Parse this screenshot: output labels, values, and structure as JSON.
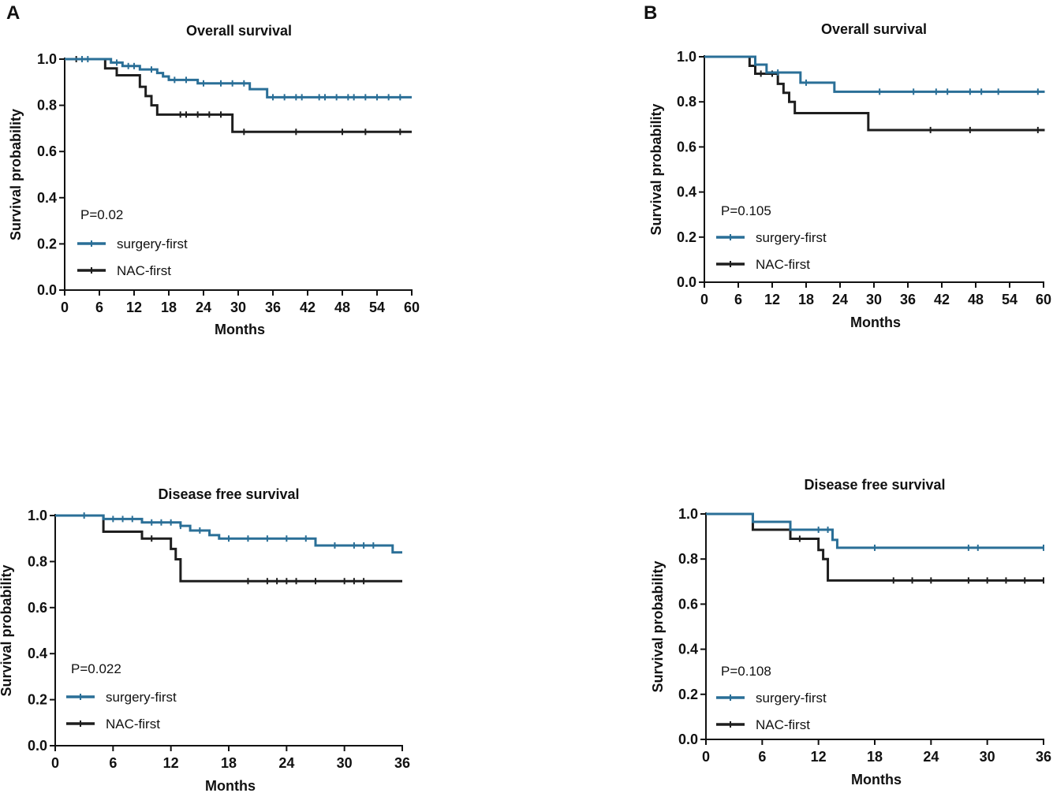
{
  "panel_labels": [
    "A",
    "B"
  ],
  "colors": {
    "surgery_first": "#2a6f97",
    "nac_first": "#1e1e1e"
  },
  "chart_data": [
    {
      "type": "line",
      "panel": "A",
      "title": "Overall survival",
      "xlabel": "Months",
      "ylabel": "Survival probability",
      "xlim": [
        0,
        60
      ],
      "ylim": [
        0,
        1.0
      ],
      "xticks": [
        0,
        6,
        12,
        18,
        24,
        30,
        36,
        42,
        48,
        54,
        60
      ],
      "yticks": [
        "0.0",
        "0.2",
        "0.4",
        "0.6",
        "0.8",
        "1.0"
      ],
      "p_value": "P=0.02",
      "series": [
        {
          "name": "surgery-first",
          "color_key": "surgery_first",
          "steps": [
            [
              0,
              1.0
            ],
            [
              8,
              0.985
            ],
            [
              10,
              0.97
            ],
            [
              13,
              0.955
            ],
            [
              16,
              0.94
            ],
            [
              17,
              0.925
            ],
            [
              18,
              0.91
            ],
            [
              23,
              0.895
            ],
            [
              32,
              0.87
            ],
            [
              35,
              0.835
            ],
            [
              60,
              0.835
            ]
          ],
          "censors": [
            3,
            4,
            9,
            11,
            12,
            15,
            19,
            21,
            24,
            27,
            29,
            31,
            36,
            38,
            40,
            41,
            44,
            45,
            47,
            49,
            50,
            52,
            54,
            56,
            58
          ]
        },
        {
          "name": "NAC-first",
          "color_key": "nac_first",
          "steps": [
            [
              0,
              1.0
            ],
            [
              7,
              0.96
            ],
            [
              9,
              0.93
            ],
            [
              13,
              0.88
            ],
            [
              14,
              0.84
            ],
            [
              15,
              0.8
            ],
            [
              16,
              0.76
            ],
            [
              29,
              0.685
            ],
            [
              60,
              0.685
            ]
          ],
          "censors": [
            2,
            20,
            21,
            23,
            25,
            27,
            31,
            40,
            48,
            52,
            58
          ]
        }
      ]
    },
    {
      "type": "line",
      "panel": "B",
      "title": "Overall survival",
      "xlabel": "Months",
      "ylabel": "Survival probability",
      "xlim": [
        0,
        60
      ],
      "ylim": [
        0,
        1.0
      ],
      "xticks": [
        0,
        6,
        12,
        18,
        24,
        30,
        36,
        42,
        48,
        54,
        60
      ],
      "yticks": [
        "0.0",
        "0.2",
        "0.4",
        "0.6",
        "0.8",
        "1.0"
      ],
      "p_value": "P=0.105",
      "series": [
        {
          "name": "surgery-first",
          "color_key": "surgery_first",
          "steps": [
            [
              0,
              1.0
            ],
            [
              9,
              0.965
            ],
            [
              11,
              0.93
            ],
            [
              17,
              0.885
            ],
            [
              23,
              0.845
            ],
            [
              60,
              0.85
            ]
          ],
          "censors": [
            13,
            18,
            31,
            37,
            41,
            43,
            47,
            49,
            52,
            59
          ]
        },
        {
          "name": "NAC-first",
          "color_key": "nac_first",
          "steps": [
            [
              0,
              1.0
            ],
            [
              8,
              0.96
            ],
            [
              9,
              0.925
            ],
            [
              13,
              0.88
            ],
            [
              14,
              0.84
            ],
            [
              15,
              0.8
            ],
            [
              16,
              0.75
            ],
            [
              29,
              0.675
            ],
            [
              60,
              0.68
            ]
          ],
          "censors": [
            10,
            12,
            40,
            47,
            59
          ]
        }
      ]
    },
    {
      "type": "line",
      "panel": "A",
      "title": "Disease free survival",
      "xlabel": "Months",
      "ylabel": "Survival probability",
      "xlim": [
        0,
        36
      ],
      "ylim": [
        0,
        1.0
      ],
      "xticks": [
        0,
        6,
        12,
        18,
        24,
        30,
        36
      ],
      "yticks": [
        "0.0",
        "0.2",
        "0.4",
        "0.6",
        "0.8",
        "1.0"
      ],
      "p_value": "P=0.022",
      "series": [
        {
          "name": "surgery-first",
          "color_key": "surgery_first",
          "steps": [
            [
              0,
              1.0
            ],
            [
              5,
              0.985
            ],
            [
              9,
              0.97
            ],
            [
              13,
              0.955
            ],
            [
              14,
              0.935
            ],
            [
              16,
              0.915
            ],
            [
              17,
              0.9
            ],
            [
              27,
              0.87
            ],
            [
              35,
              0.84
            ],
            [
              36,
              0.84
            ]
          ],
          "censors": [
            3,
            6,
            7,
            8,
            10,
            11,
            12,
            13,
            15,
            18,
            20,
            22,
            24,
            26,
            29,
            31,
            32,
            33
          ]
        },
        {
          "name": "NAC-first",
          "color_key": "nac_first",
          "steps": [
            [
              0,
              1.0
            ],
            [
              5,
              0.93
            ],
            [
              9,
              0.9
            ],
            [
              12,
              0.855
            ],
            [
              12.5,
              0.81
            ],
            [
              13,
              0.715
            ],
            [
              36,
              0.715
            ]
          ],
          "censors": [
            10,
            20,
            22,
            23,
            24,
            25,
            27,
            30,
            31,
            32
          ]
        }
      ]
    },
    {
      "type": "line",
      "panel": "B",
      "title": "Disease free survival",
      "xlabel": "Months",
      "ylabel": "Survival probability",
      "xlim": [
        0,
        36
      ],
      "ylim": [
        0,
        1.0
      ],
      "xticks": [
        0,
        6,
        12,
        18,
        24,
        30,
        36
      ],
      "yticks": [
        "0.0",
        "0.2",
        "0.4",
        "0.6",
        "0.8",
        "1.0"
      ],
      "p_value": "P=0.108",
      "series": [
        {
          "name": "surgery-first",
          "color_key": "surgery_first",
          "steps": [
            [
              0,
              1.0
            ],
            [
              5,
              0.965
            ],
            [
              9,
              0.93
            ],
            [
              13.5,
              0.885
            ],
            [
              14,
              0.85
            ],
            [
              36,
              0.85
            ]
          ],
          "censors": [
            12,
            13,
            18,
            28,
            29,
            36
          ]
        },
        {
          "name": "NAC-first",
          "color_key": "nac_first",
          "steps": [
            [
              0,
              1.0
            ],
            [
              5,
              0.93
            ],
            [
              9,
              0.89
            ],
            [
              12,
              0.84
            ],
            [
              12.5,
              0.8
            ],
            [
              13,
              0.705
            ],
            [
              36,
              0.705
            ]
          ],
          "censors": [
            10,
            20,
            22,
            24,
            28,
            30,
            32,
            34,
            36
          ]
        }
      ]
    }
  ]
}
